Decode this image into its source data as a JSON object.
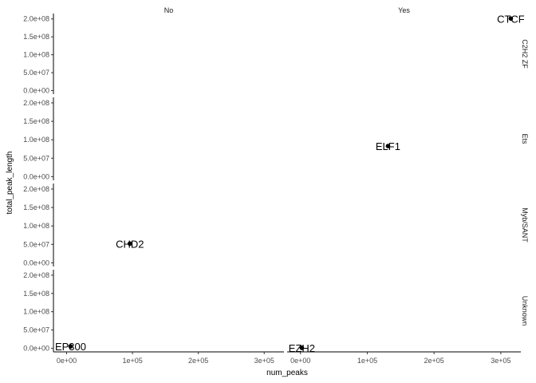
{
  "chart_data": {
    "type": "scatter",
    "xlabel": "num_peaks",
    "ylabel": "total_peak_length",
    "facet_cols": [
      "No",
      "Yes"
    ],
    "facet_rows": [
      "C2H2 ZF",
      "Ets",
      "Myb/SANT",
      "Unknown"
    ],
    "xlim": [
      -20000,
      330000
    ],
    "ylim": [
      -10000000,
      215000000
    ],
    "x_ticks": [
      0,
      100000,
      200000,
      300000
    ],
    "x_tick_labels": [
      "0e+00",
      "1e+05",
      "2e+05",
      "3e+05"
    ],
    "y_ticks": [
      0,
      50000000,
      100000000,
      150000000,
      200000000
    ],
    "y_tick_labels": [
      "0.0e+00",
      "5.0e+07",
      "1.0e+08",
      "1.5e+08",
      "2.0e+08"
    ],
    "grid": false,
    "points": [
      {
        "label": "CTCF",
        "col": "Yes",
        "row": "C2H2 ZF",
        "x": 315000,
        "y": 201000000
      },
      {
        "label": "ELF1",
        "col": "Yes",
        "row": "Ets",
        "x": 131000,
        "y": 83000000
      },
      {
        "label": "CHD2",
        "col": "No",
        "row": "Myb/SANT",
        "x": 96000,
        "y": 52000000
      },
      {
        "label": "EP300",
        "col": "No",
        "row": "Unknown",
        "x": 6000,
        "y": 5000000
      },
      {
        "label": "EZH2",
        "col": "Yes",
        "row": "Unknown",
        "x": 2000,
        "y": 1000000
      }
    ]
  }
}
